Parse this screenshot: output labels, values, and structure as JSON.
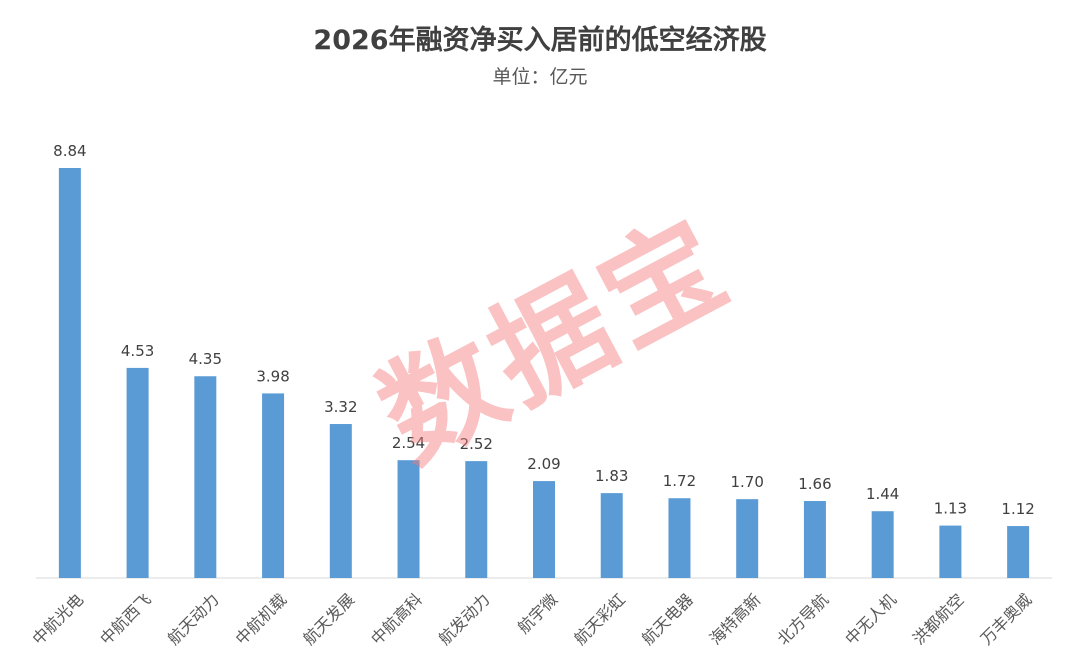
{
  "title": "2026年融资净买入居前的低空经济股",
  "subtitle": "单位：亿元",
  "watermark": "数据宝",
  "chart_data": {
    "type": "bar",
    "title": "2026年融资净买入居前的低空经济股",
    "subtitle": "单位：亿元",
    "categories": [
      "中航光电",
      "中航西飞",
      "航天动力",
      "中航机载",
      "航天发展",
      "中航高科",
      "航发动力",
      "航宇微",
      "航天彩虹",
      "航天电器",
      "海特高新",
      "北方导航",
      "中无人机",
      "洪都航空",
      "万丰奥威"
    ],
    "values": [
      8.84,
      4.53,
      4.35,
      3.98,
      3.32,
      2.54,
      2.52,
      2.09,
      1.83,
      1.72,
      1.7,
      1.66,
      1.44,
      1.13,
      1.12
    ],
    "ylim": [
      0,
      9.5
    ],
    "grid": false,
    "bar_color": "#5B9BD5",
    "label_color": "#404040"
  }
}
